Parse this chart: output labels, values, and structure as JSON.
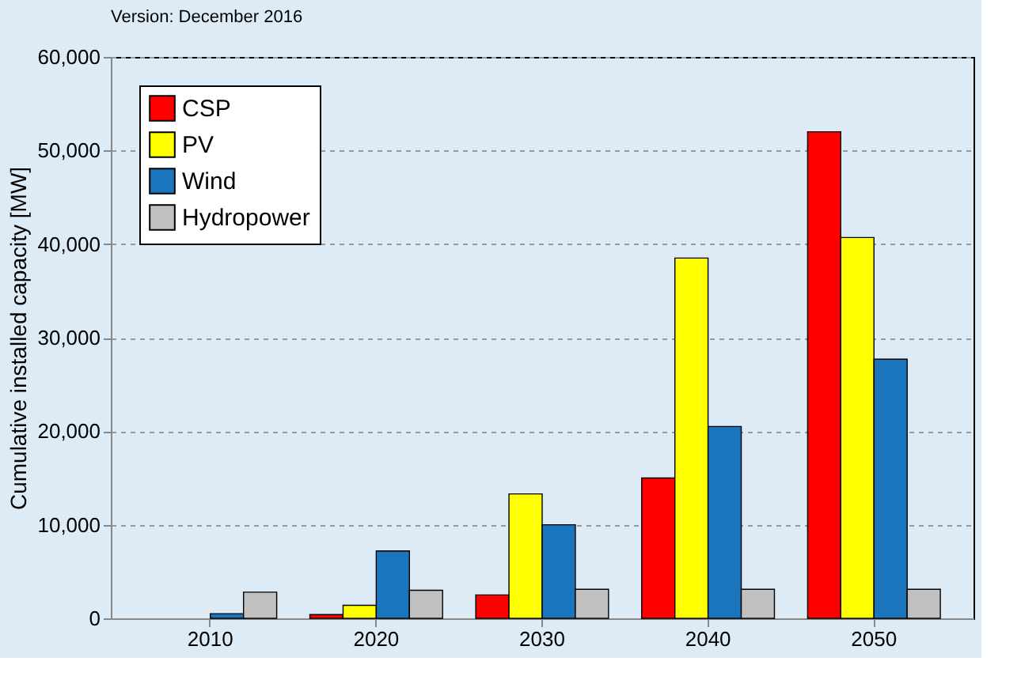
{
  "chart_data": {
    "type": "bar",
    "categories": [
      "2010",
      "2020",
      "2030",
      "2040",
      "2050"
    ],
    "series": [
      {
        "name": "CSP",
        "color": "#ff0000",
        "values": [
          0,
          400,
          2500,
          15000,
          52000
        ]
      },
      {
        "name": "PV",
        "color": "#ffff00",
        "values": [
          0,
          1400,
          13300,
          38500,
          40700
        ]
      },
      {
        "name": "Wind",
        "color": "#1a75bc",
        "values": [
          500,
          7200,
          10000,
          20500,
          27700
        ]
      },
      {
        "name": "Hydropower",
        "color": "#c0c0c0",
        "values": [
          2800,
          3000,
          3100,
          3100,
          3100
        ]
      }
    ],
    "ylabel": "Cumulative installed capacity [MW]",
    "ylim": [
      0,
      60000
    ],
    "yticks": [
      0,
      {
        "value": 10000,
        "label": "10,000"
      },
      {
        "value": 20000,
        "label": "20,000"
      },
      {
        "value": 30000,
        "label": "30,000"
      },
      {
        "value": 40000,
        "label": "40,000"
      },
      {
        "value": 50000,
        "label": "50,000"
      },
      {
        "value": 60000,
        "label": "60,000"
      }
    ],
    "grid": "y",
    "legend": "top left",
    "annotations": [
      "Version: December 2016"
    ]
  }
}
